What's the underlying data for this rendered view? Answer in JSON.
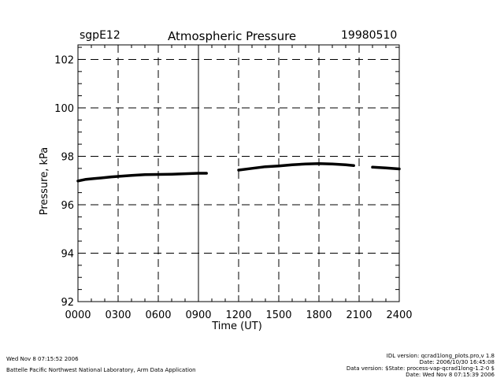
{
  "header": {
    "site": "sgpE12",
    "title": "Atmospheric Pressure",
    "date": "19980510"
  },
  "footer": {
    "timestamp": "Wed Nov  8 07:15:52 2006",
    "org": "Battelle Pacific Northwest National Laboratory, Arm Data Application",
    "idl_version": "IDL version: qcrad1long_plots.pro,v 1.8",
    "idl_date": "Date: 2006/10/30 16:45:08",
    "data_version": "Data version: $State: process-vap-qcrad1long-1.2-0 $",
    "data_date": "Date: Wed Nov  8 07:15:39 2006"
  },
  "chart_data": {
    "type": "line",
    "title": "Atmospheric Pressure",
    "xlabel": "Time (UT)",
    "ylabel": "Pressure, kPa",
    "xlim": [
      0,
      2400
    ],
    "ylim": [
      92,
      102.6
    ],
    "grid": true,
    "x_tick_labels": [
      "0000",
      "0300",
      "0600",
      "0900",
      "1200",
      "1500",
      "1800",
      "2100",
      "2400"
    ],
    "x_ticks": [
      0,
      300,
      600,
      900,
      1200,
      1500,
      1800,
      2100,
      2400
    ],
    "y_tick_labels": [
      "92",
      "94",
      "96",
      "98",
      "100",
      "102"
    ],
    "y_ticks": [
      92,
      94,
      96,
      98,
      100,
      102
    ],
    "series": [
      {
        "color": "#000000",
        "segments": [
          [
            [
              0,
              96.98
            ],
            [
              60,
              97.05
            ],
            [
              120,
              97.08
            ],
            [
              200,
              97.12
            ],
            [
              250,
              97.15
            ],
            [
              300,
              97.17
            ],
            [
              400,
              97.21
            ],
            [
              500,
              97.24
            ],
            [
              600,
              97.25
            ],
            [
              700,
              97.26
            ],
            [
              800,
              97.28
            ],
            [
              900,
              97.3
            ],
            [
              960,
              97.3
            ]
          ],
          [
            [
              1200,
              97.43
            ],
            [
              1300,
              97.5
            ],
            [
              1400,
              97.57
            ],
            [
              1500,
              97.6
            ],
            [
              1600,
              97.65
            ],
            [
              1700,
              97.68
            ],
            [
              1800,
              97.7
            ],
            [
              1900,
              97.68
            ],
            [
              2000,
              97.65
            ],
            [
              2060,
              97.62
            ]
          ],
          [
            [
              2200,
              97.55
            ],
            [
              2300,
              97.52
            ],
            [
              2400,
              97.48
            ]
          ]
        ]
      }
    ]
  }
}
